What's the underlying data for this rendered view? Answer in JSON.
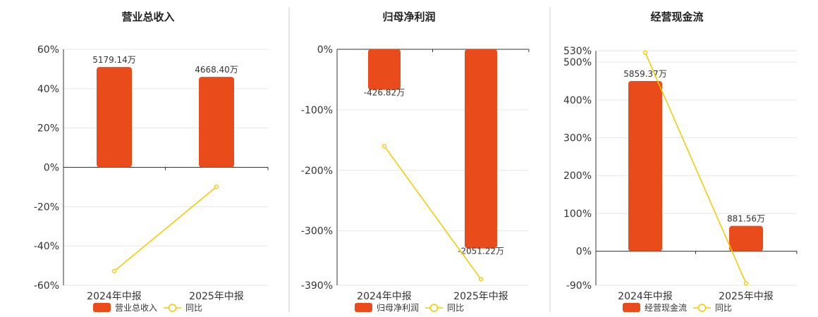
{
  "colors": {
    "bar": "#E94B1B",
    "line": "#F2CC0C"
  },
  "chart_data": [
    {
      "type": "bar",
      "title": "营业总收入",
      "categories": [
        "2024年中报",
        "2025年中报"
      ],
      "ylim": [
        -60,
        60
      ],
      "yticks": [
        60,
        40,
        20,
        0,
        -20,
        -40,
        -60
      ],
      "ytick_labels": [
        "60%",
        "40%",
        "20%",
        "0%",
        "-20%",
        "-40%",
        "-60%"
      ],
      "series": [
        {
          "name": "营业总收入",
          "type": "bar",
          "values": [
            51,
            46
          ],
          "labels": [
            "5179.14万",
            "4668.40万"
          ]
        },
        {
          "name": "同比",
          "type": "line",
          "values": [
            -52.8,
            -9.9
          ]
        }
      ],
      "legend_position": "bottom"
    },
    {
      "type": "bar",
      "title": "归母净利润",
      "categories": [
        "2024年中报",
        "2025年中报"
      ],
      "ylim": [
        -390,
        0
      ],
      "yticks": [
        0,
        -100,
        -200,
        -300,
        -390
      ],
      "ytick_labels": [
        "0%",
        "-100%",
        "-200%",
        "-300%",
        "-390%"
      ],
      "series": [
        {
          "name": "归母净利润",
          "type": "bar",
          "values": [
            -67,
            -329
          ],
          "labels": [
            "-426.82万",
            "-2051.22万"
          ]
        },
        {
          "name": "同比",
          "type": "line",
          "values": [
            -160,
            -380
          ]
        }
      ],
      "legend_position": "bottom"
    },
    {
      "type": "bar",
      "title": "经营现金流",
      "categories": [
        "2024年中报",
        "2025年中报"
      ],
      "ylim": [
        -90,
        530
      ],
      "yticks": [
        530,
        500,
        400,
        300,
        200,
        100,
        0,
        -90
      ],
      "ytick_labels": [
        "530%",
        "500%",
        "400%",
        "300%",
        "200%",
        "100%",
        "0%",
        "-90%"
      ],
      "series": [
        {
          "name": "经营现金流",
          "type": "bar",
          "values": [
            450,
            67
          ],
          "labels": [
            "5859.37万",
            "881.56万"
          ]
        },
        {
          "name": "同比",
          "type": "line",
          "values": [
            525,
            -85
          ]
        }
      ],
      "legend_position": "bottom"
    }
  ]
}
